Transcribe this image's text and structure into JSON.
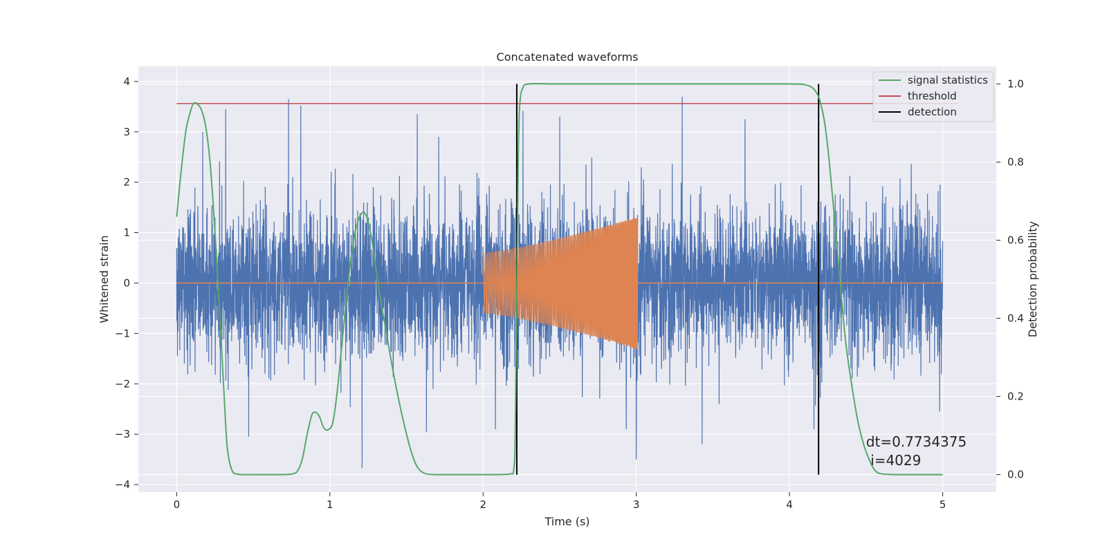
{
  "chart_data": {
    "type": "line",
    "title": "Concatenated waveforms",
    "xlabel": "Time (s)",
    "ylabel": "Whitened strain",
    "y2label": "Detection probability",
    "xlim": [
      -0.25,
      5.35
    ],
    "ylim": [
      -4.15,
      4.3
    ],
    "y2lim": [
      -0.045,
      1.045
    ],
    "xticks": [
      0,
      1,
      2,
      3,
      4,
      5
    ],
    "yticks": [
      -4,
      -3,
      -2,
      -1,
      0,
      1,
      2,
      3,
      4
    ],
    "y2ticks": [
      0.0,
      0.2,
      0.4,
      0.6,
      0.8,
      1.0
    ],
    "grid": true,
    "legend_position": "top-right",
    "colors": {
      "noise": "#4c72b0",
      "injection": "#dd8452",
      "signal_statistics": "#55a868",
      "threshold": "#c44e52",
      "detection": "#000000",
      "background": "#eaeaf2",
      "grid": "#ffffff"
    },
    "series": [
      {
        "name": "",
        "role": "noise",
        "axis": "left",
        "x_range": [
          0,
          5
        ],
        "std": 0.75,
        "peaks": [
          [
            0.73,
            3.65
          ],
          [
            0.81,
            3.52
          ],
          [
            0.32,
            3.45
          ],
          [
            2.26,
            3.42
          ],
          [
            1.57,
            3.35
          ],
          [
            3.3,
            3.7
          ],
          [
            2.5,
            3.3
          ],
          [
            3.71,
            3.25
          ],
          [
            0.17,
            3.0
          ],
          [
            1.71,
            2.9
          ],
          [
            1.21,
            -3.67
          ],
          [
            0.47,
            -3.05
          ],
          [
            1.63,
            -2.95
          ],
          [
            3.0,
            -3.5
          ],
          [
            3.43,
            -3.2
          ],
          [
            2.08,
            -2.9
          ],
          [
            4.16,
            -2.9
          ],
          [
            4.98,
            -2.55
          ]
        ]
      },
      {
        "name": "",
        "role": "injection",
        "axis": "left",
        "x_range": [
          2.0,
          3.01
        ],
        "amp_start": 0.6,
        "amp_end": 1.32
      },
      {
        "name": "signal statistics",
        "role": "probability",
        "axis": "right",
        "x": [
          0.0,
          0.03,
          0.06,
          0.09,
          0.11,
          0.13,
          0.16,
          0.19,
          0.22,
          0.25,
          0.28,
          0.31,
          0.33,
          0.36,
          0.4,
          0.5,
          0.6,
          0.7,
          0.76,
          0.79,
          0.82,
          0.85,
          0.88,
          0.9,
          0.93,
          0.96,
          0.99,
          1.02,
          1.05,
          1.09,
          1.13,
          1.17,
          1.21,
          1.24,
          1.27,
          1.3,
          1.33,
          1.37,
          1.41,
          1.45,
          1.49,
          1.53,
          1.57,
          1.62,
          1.7,
          1.8,
          1.9,
          2.0,
          2.1,
          2.18,
          2.2,
          2.21,
          2.22,
          2.23,
          2.24,
          2.26,
          2.3,
          2.5,
          3.0,
          3.5,
          4.0,
          4.1,
          4.15,
          4.18,
          4.2,
          4.23,
          4.26,
          4.3,
          4.34,
          4.37,
          4.41,
          4.45,
          4.49,
          4.53,
          4.56,
          4.6,
          4.7,
          4.8,
          4.9,
          5.0
        ],
        "values": [
          0.66,
          0.78,
          0.88,
          0.93,
          0.95,
          0.95,
          0.935,
          0.89,
          0.79,
          0.62,
          0.42,
          0.2,
          0.07,
          0.012,
          0.001,
          0.0,
          0.0,
          0.0,
          0.002,
          0.01,
          0.04,
          0.1,
          0.15,
          0.16,
          0.15,
          0.12,
          0.115,
          0.135,
          0.22,
          0.38,
          0.53,
          0.63,
          0.67,
          0.66,
          0.61,
          0.53,
          0.45,
          0.36,
          0.27,
          0.19,
          0.12,
          0.06,
          0.02,
          0.003,
          0.0,
          0.0,
          0.0,
          0.0,
          0.0,
          0.002,
          0.012,
          0.1,
          0.45,
          0.82,
          0.95,
          0.99,
          1.0,
          1.0,
          1.0,
          1.0,
          1.0,
          0.998,
          0.99,
          0.975,
          0.955,
          0.9,
          0.8,
          0.63,
          0.45,
          0.33,
          0.22,
          0.13,
          0.07,
          0.03,
          0.01,
          0.002,
          0.0,
          0.0,
          0.0,
          0.0
        ]
      },
      {
        "name": "threshold",
        "role": "threshold",
        "axis": "right",
        "x": [
          0,
          5.1
        ],
        "values": [
          0.95,
          0.95
        ]
      },
      {
        "name": "detection",
        "role": "detection",
        "axis": "right",
        "x_positions": [
          2.22,
          4.19
        ],
        "values": [
          0.0,
          1.0
        ]
      }
    ],
    "annotation": {
      "line1": "dt=0.7734375",
      "line2": " i=4029",
      "x": 4.5,
      "y_right": 0.1
    }
  }
}
